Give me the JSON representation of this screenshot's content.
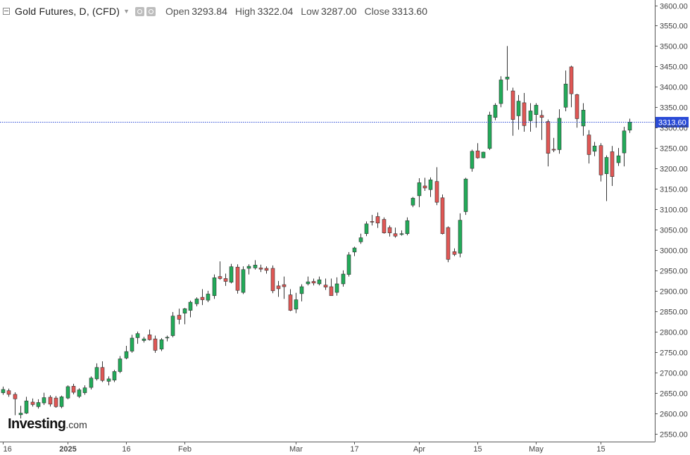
{
  "header": {
    "title": "Gold Futures, D, (CFD)",
    "open_label": "Open",
    "open": "3293.84",
    "high_label": "High",
    "high": "3322.04",
    "low_label": "Low",
    "low": "3287.00",
    "close_label": "Close",
    "close": "3313.60"
  },
  "logo": {
    "main": "Investing",
    "suffix": ".com"
  },
  "colors": {
    "up": "#26a69a",
    "up_fill": "#22ab59",
    "down": "#e05755",
    "price_line": "#2a4bd7",
    "grid": "#e6e6e6",
    "axis": "#555555"
  },
  "chart_data": {
    "type": "candlestick",
    "title": "Gold Futures, D, (CFD)",
    "y_axis": {
      "min": 2540,
      "max": 3610,
      "step": 50,
      "side": "right",
      "tick_labels": [
        "2550.00",
        "2600.00",
        "2650.00",
        "2700.00",
        "2750.00",
        "2800.00",
        "2850.00",
        "2900.00",
        "2950.00",
        "3000.00",
        "3050.00",
        "3100.00",
        "3150.00",
        "3200.00",
        "3250.00",
        "3300.00",
        "3350.00",
        "3400.00",
        "3450.00",
        "3500.00",
        "3550.00",
        "3600.00"
      ]
    },
    "x_axis": {
      "ticks": [
        {
          "label": "16",
          "index": 0
        },
        {
          "label": "2025",
          "index": 11,
          "bold": true
        },
        {
          "label": "16",
          "index": 21
        },
        {
          "label": "Feb",
          "index": 31
        },
        {
          "label": "Mar",
          "index": 50
        },
        {
          "label": "17",
          "index": 60
        },
        {
          "label": "Apr",
          "index": 71
        },
        {
          "label": "15",
          "index": 81
        },
        {
          "label": "May",
          "index": 91
        },
        {
          "label": "15",
          "index": 102
        }
      ]
    },
    "last_price": 3313.6,
    "last_price_label": "3313.60",
    "candles": [
      {
        "o": 2650,
        "h": 2665,
        "l": 2645,
        "c": 2658
      },
      {
        "o": 2655,
        "h": 2660,
        "l": 2640,
        "c": 2646
      },
      {
        "o": 2646,
        "h": 2651,
        "l": 2595,
        "c": 2635
      },
      {
        "o": 2596,
        "h": 2618,
        "l": 2587,
        "c": 2600
      },
      {
        "o": 2600,
        "h": 2640,
        "l": 2598,
        "c": 2630
      },
      {
        "o": 2627,
        "h": 2636,
        "l": 2616,
        "c": 2621
      },
      {
        "o": 2616,
        "h": 2634,
        "l": 2611,
        "c": 2626
      },
      {
        "o": 2625,
        "h": 2650,
        "l": 2620,
        "c": 2638
      },
      {
        "o": 2639,
        "h": 2644,
        "l": 2616,
        "c": 2622
      },
      {
        "o": 2637,
        "h": 2642,
        "l": 2613,
        "c": 2616
      },
      {
        "o": 2616,
        "h": 2643,
        "l": 2612,
        "c": 2640
      },
      {
        "o": 2637,
        "h": 2668,
        "l": 2634,
        "c": 2665
      },
      {
        "o": 2666,
        "h": 2672,
        "l": 2646,
        "c": 2651
      },
      {
        "o": 2641,
        "h": 2661,
        "l": 2637,
        "c": 2657
      },
      {
        "o": 2650,
        "h": 2668,
        "l": 2645,
        "c": 2662
      },
      {
        "o": 2663,
        "h": 2690,
        "l": 2658,
        "c": 2686
      },
      {
        "o": 2684,
        "h": 2722,
        "l": 2680,
        "c": 2712
      },
      {
        "o": 2712,
        "h": 2727,
        "l": 2676,
        "c": 2680
      },
      {
        "o": 2678,
        "h": 2690,
        "l": 2668,
        "c": 2684
      },
      {
        "o": 2681,
        "h": 2706,
        "l": 2676,
        "c": 2702
      },
      {
        "o": 2702,
        "h": 2740,
        "l": 2698,
        "c": 2733
      },
      {
        "o": 2735,
        "h": 2765,
        "l": 2732,
        "c": 2751
      },
      {
        "o": 2752,
        "h": 2792,
        "l": 2748,
        "c": 2784
      },
      {
        "o": 2785,
        "h": 2800,
        "l": 2770,
        "c": 2795
      },
      {
        "o": 2778,
        "h": 2787,
        "l": 2773,
        "c": 2782
      },
      {
        "o": 2792,
        "h": 2805,
        "l": 2778,
        "c": 2780
      },
      {
        "o": 2782,
        "h": 2790,
        "l": 2748,
        "c": 2754
      },
      {
        "o": 2757,
        "h": 2784,
        "l": 2752,
        "c": 2780
      },
      {
        "o": 2785,
        "h": 2790,
        "l": 2776,
        "c": 2786
      },
      {
        "o": 2790,
        "h": 2848,
        "l": 2786,
        "c": 2838
      },
      {
        "o": 2840,
        "h": 2856,
        "l": 2818,
        "c": 2830
      },
      {
        "o": 2845,
        "h": 2858,
        "l": 2818,
        "c": 2856
      },
      {
        "o": 2852,
        "h": 2876,
        "l": 2835,
        "c": 2872
      },
      {
        "o": 2868,
        "h": 2884,
        "l": 2862,
        "c": 2880
      },
      {
        "o": 2884,
        "h": 2904,
        "l": 2865,
        "c": 2878
      },
      {
        "o": 2877,
        "h": 2900,
        "l": 2872,
        "c": 2892
      },
      {
        "o": 2888,
        "h": 2940,
        "l": 2880,
        "c": 2932
      },
      {
        "o": 2935,
        "h": 2972,
        "l": 2927,
        "c": 2930
      },
      {
        "o": 2930,
        "h": 2942,
        "l": 2912,
        "c": 2923
      },
      {
        "o": 2921,
        "h": 2966,
        "l": 2918,
        "c": 2959
      },
      {
        "o": 2958,
        "h": 2965,
        "l": 2893,
        "c": 2901
      },
      {
        "o": 2896,
        "h": 2960,
        "l": 2892,
        "c": 2952
      },
      {
        "o": 2955,
        "h": 2965,
        "l": 2940,
        "c": 2960
      },
      {
        "o": 2956,
        "h": 2975,
        "l": 2952,
        "c": 2963
      },
      {
        "o": 2956,
        "h": 2964,
        "l": 2946,
        "c": 2953
      },
      {
        "o": 2955,
        "h": 2960,
        "l": 2942,
        "c": 2950
      },
      {
        "o": 2955,
        "h": 2962,
        "l": 2894,
        "c": 2900
      },
      {
        "o": 2912,
        "h": 2924,
        "l": 2885,
        "c": 2905
      },
      {
        "o": 2915,
        "h": 2935,
        "l": 2880,
        "c": 2910
      },
      {
        "o": 2890,
        "h": 2904,
        "l": 2850,
        "c": 2852
      },
      {
        "o": 2855,
        "h": 2895,
        "l": 2845,
        "c": 2878
      },
      {
        "o": 2893,
        "h": 2916,
        "l": 2874,
        "c": 2910
      },
      {
        "o": 2917,
        "h": 2935,
        "l": 2913,
        "c": 2922
      },
      {
        "o": 2923,
        "h": 2930,
        "l": 2913,
        "c": 2919
      },
      {
        "o": 2917,
        "h": 2935,
        "l": 2913,
        "c": 2927
      },
      {
        "o": 2914,
        "h": 2930,
        "l": 2902,
        "c": 2909
      },
      {
        "o": 2910,
        "h": 2930,
        "l": 2888,
        "c": 2888
      },
      {
        "o": 2896,
        "h": 2933,
        "l": 2888,
        "c": 2917
      },
      {
        "o": 2917,
        "h": 2950,
        "l": 2910,
        "c": 2941
      },
      {
        "o": 2940,
        "h": 2995,
        "l": 2935,
        "c": 2988
      },
      {
        "o": 2995,
        "h": 3008,
        "l": 2985,
        "c": 3005
      },
      {
        "o": 3020,
        "h": 3040,
        "l": 3015,
        "c": 3030
      },
      {
        "o": 3040,
        "h": 3070,
        "l": 3034,
        "c": 3064
      },
      {
        "o": 3070,
        "h": 3086,
        "l": 3060,
        "c": 3069
      },
      {
        "o": 3082,
        "h": 3092,
        "l": 3054,
        "c": 3066
      },
      {
        "o": 3075,
        "h": 3080,
        "l": 3040,
        "c": 3042
      },
      {
        "o": 3055,
        "h": 3060,
        "l": 3033,
        "c": 3042
      },
      {
        "o": 3040,
        "h": 3055,
        "l": 3030,
        "c": 3034
      },
      {
        "o": 3038,
        "h": 3048,
        "l": 3035,
        "c": 3040
      },
      {
        "o": 3040,
        "h": 3080,
        "l": 3036,
        "c": 3072
      },
      {
        "o": 3110,
        "h": 3130,
        "l": 3105,
        "c": 3127
      },
      {
        "o": 3133,
        "h": 3176,
        "l": 3105,
        "c": 3165
      },
      {
        "o": 3157,
        "h": 3177,
        "l": 3145,
        "c": 3152
      },
      {
        "o": 3148,
        "h": 3178,
        "l": 3130,
        "c": 3172
      },
      {
        "o": 3168,
        "h": 3203,
        "l": 3110,
        "c": 3117
      },
      {
        "o": 3128,
        "h": 3136,
        "l": 3038,
        "c": 3040
      },
      {
        "o": 3055,
        "h": 3058,
        "l": 2970,
        "c": 2977
      },
      {
        "o": 2996,
        "h": 3004,
        "l": 2985,
        "c": 2989
      },
      {
        "o": 2992,
        "h": 3090,
        "l": 2982,
        "c": 3073
      },
      {
        "o": 3094,
        "h": 3177,
        "l": 3086,
        "c": 3174
      },
      {
        "o": 3200,
        "h": 3246,
        "l": 3192,
        "c": 3242
      },
      {
        "o": 3243,
        "h": 3262,
        "l": 3224,
        "c": 3226
      },
      {
        "o": 3226,
        "h": 3241,
        "l": 3225,
        "c": 3240
      },
      {
        "o": 3249,
        "h": 3339,
        "l": 3245,
        "c": 3331
      },
      {
        "o": 3325,
        "h": 3360,
        "l": 3318,
        "c": 3355
      },
      {
        "o": 3359,
        "h": 3426,
        "l": 3350,
        "c": 3417
      },
      {
        "o": 3419,
        "h": 3500,
        "l": 3391,
        "c": 3424
      },
      {
        "o": 3390,
        "h": 3398,
        "l": 3280,
        "c": 3320
      },
      {
        "o": 3329,
        "h": 3380,
        "l": 3295,
        "c": 3365
      },
      {
        "o": 3361,
        "h": 3385,
        "l": 3290,
        "c": 3305
      },
      {
        "o": 3317,
        "h": 3360,
        "l": 3290,
        "c": 3341
      },
      {
        "o": 3332,
        "h": 3360,
        "l": 3300,
        "c": 3355
      },
      {
        "o": 3330,
        "h": 3343,
        "l": 3270,
        "c": 3325
      },
      {
        "o": 3315,
        "h": 3320,
        "l": 3205,
        "c": 3237
      },
      {
        "o": 3247,
        "h": 3275,
        "l": 3240,
        "c": 3245
      },
      {
        "o": 3246,
        "h": 3345,
        "l": 3236,
        "c": 3323
      },
      {
        "o": 3350,
        "h": 3440,
        "l": 3340,
        "c": 3407
      },
      {
        "o": 3449,
        "h": 3452,
        "l": 3350,
        "c": 3383
      },
      {
        "o": 3381,
        "h": 3383,
        "l": 3300,
        "c": 3322
      },
      {
        "o": 3304,
        "h": 3360,
        "l": 3280,
        "c": 3343
      },
      {
        "o": 3282,
        "h": 3294,
        "l": 3212,
        "c": 3234
      },
      {
        "o": 3242,
        "h": 3265,
        "l": 3230,
        "c": 3255
      },
      {
        "o": 3256,
        "h": 3262,
        "l": 3168,
        "c": 3184
      },
      {
        "o": 3187,
        "h": 3232,
        "l": 3120,
        "c": 3227
      },
      {
        "o": 3241,
        "h": 3255,
        "l": 3157,
        "c": 3180
      },
      {
        "o": 3214,
        "h": 3250,
        "l": 3206,
        "c": 3231
      },
      {
        "o": 3238,
        "h": 3302,
        "l": 3205,
        "c": 3292
      },
      {
        "o": 3293.84,
        "h": 3322.04,
        "l": 3287.0,
        "c": 3313.6
      }
    ]
  }
}
